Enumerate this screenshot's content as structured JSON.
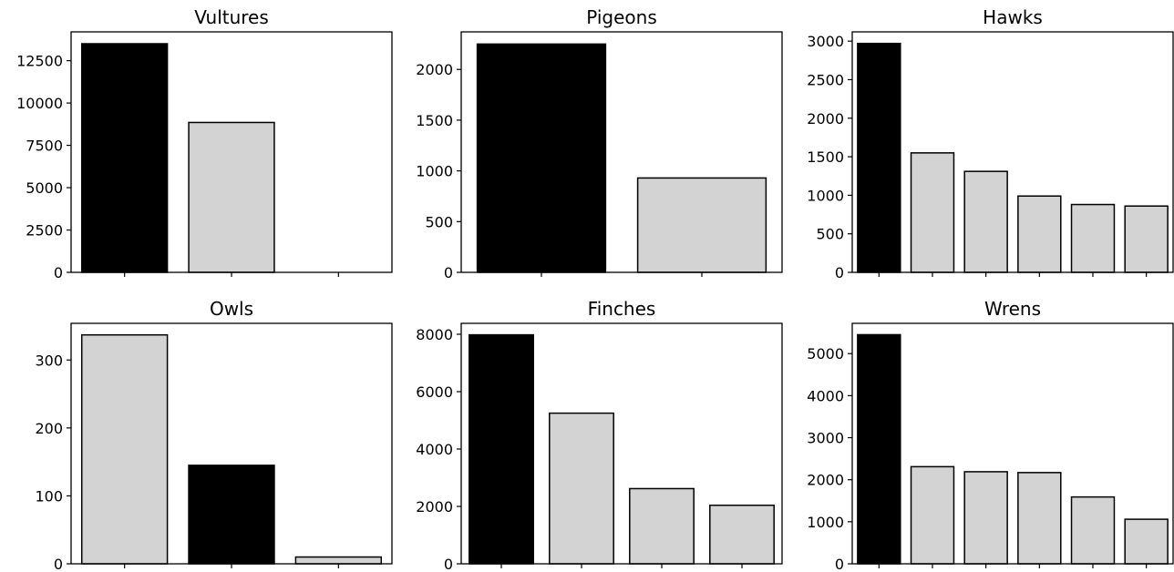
{
  "colors": {
    "highlight": "#000000",
    "default": "#d3d3d3",
    "edge": "#000000",
    "background": "#ffffff"
  },
  "chart_data": [
    {
      "type": "bar",
      "title": "Vultures",
      "values": [
        13500,
        8850,
        0
      ],
      "highlight_index": 0,
      "ylim": [
        0,
        14200
      ],
      "yticks": [
        0,
        2500,
        5000,
        7500,
        10000,
        12500
      ],
      "ytick_labels": [
        "0",
        "2500",
        "5000",
        "7500",
        "10000",
        "12500"
      ],
      "grid": false
    },
    {
      "type": "bar",
      "title": "Pigeons",
      "values": [
        2250,
        930
      ],
      "highlight_index": 0,
      "ylim": [
        0,
        2370
      ],
      "yticks": [
        0,
        500,
        1000,
        1500,
        2000
      ],
      "ytick_labels": [
        "0",
        "500",
        "1000",
        "1500",
        "2000"
      ],
      "grid": false
    },
    {
      "type": "bar",
      "title": "Hawks",
      "values": [
        2970,
        1550,
        1310,
        990,
        880,
        860
      ],
      "highlight_index": 0,
      "ylim": [
        0,
        3120
      ],
      "yticks": [
        0,
        500,
        1000,
        1500,
        2000,
        2500,
        3000
      ],
      "ytick_labels": [
        "0",
        "500",
        "1000",
        "1500",
        "2000",
        "2500",
        "3000"
      ],
      "grid": false
    },
    {
      "type": "bar",
      "title": "Owls",
      "values": [
        337,
        145,
        10
      ],
      "highlight_index": 1,
      "ylim": [
        0,
        354
      ],
      "yticks": [
        0,
        100,
        200,
        300
      ],
      "ytick_labels": [
        "0",
        "100",
        "200",
        "300"
      ],
      "grid": false
    },
    {
      "type": "bar",
      "title": "Finches",
      "values": [
        7980,
        5250,
        2620,
        2040
      ],
      "highlight_index": 0,
      "ylim": [
        0,
        8380
      ],
      "yticks": [
        0,
        2000,
        4000,
        6000,
        8000
      ],
      "ytick_labels": [
        "0",
        "2000",
        "4000",
        "6000",
        "8000"
      ],
      "grid": false
    },
    {
      "type": "bar",
      "title": "Wrens",
      "values": [
        5450,
        2310,
        2190,
        2170,
        1590,
        1060
      ],
      "highlight_index": 0,
      "ylim": [
        0,
        5720
      ],
      "yticks": [
        0,
        1000,
        2000,
        3000,
        4000,
        5000
      ],
      "ytick_labels": [
        "0",
        "1000",
        "2000",
        "3000",
        "4000",
        "5000"
      ],
      "grid": false
    }
  ]
}
